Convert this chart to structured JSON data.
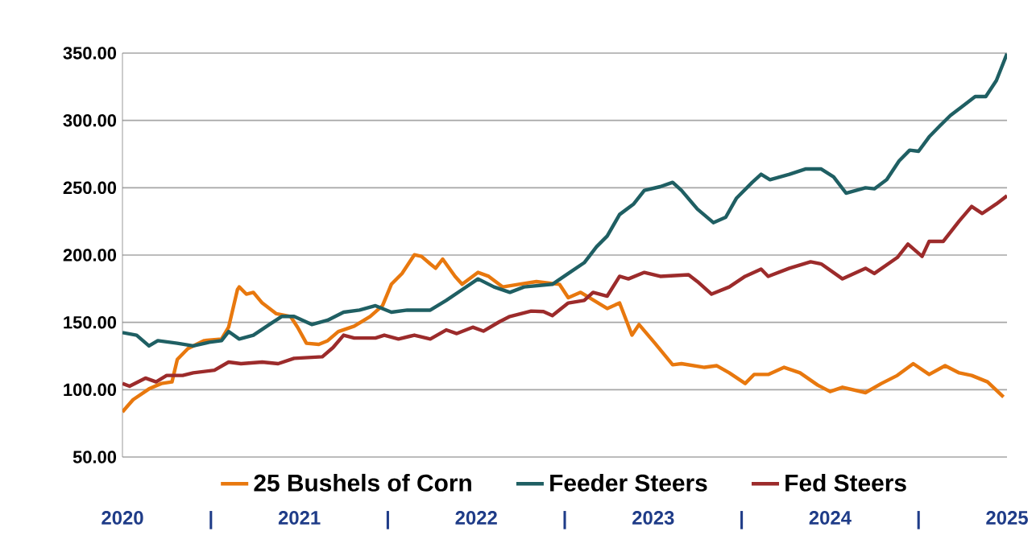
{
  "chart_data": {
    "type": "line",
    "xlim": [
      2020,
      2025
    ],
    "ylim": [
      50,
      350
    ],
    "xticks": [
      2020,
      {
        "value": 2020.5,
        "label": "|"
      },
      2021,
      {
        "value": 2021.5,
        "label": "|"
      },
      2022,
      {
        "value": 2022.5,
        "label": "|"
      },
      2023,
      {
        "value": 2023.5,
        "label": "|"
      },
      2024,
      {
        "value": 2024.5,
        "label": "|"
      },
      2025
    ],
    "yticks": [
      {
        "value": 50,
        "label": "50.00"
      },
      {
        "value": 100,
        "label": "100.00"
      },
      {
        "value": 150,
        "label": "150.00"
      },
      {
        "value": 200,
        "label": "200.00"
      },
      {
        "value": 250,
        "label": "250.00"
      },
      {
        "value": 300,
        "label": "300.00"
      },
      {
        "value": 350,
        "label": "350.00"
      }
    ],
    "grid": "y",
    "legend": "bottom",
    "series": [
      {
        "name": "25 Bushels of Corn",
        "color": "#e8780e",
        "x": [
          2020.0,
          2020.06,
          2020.15,
          2020.22,
          2020.28,
          2020.31,
          2020.37,
          2020.46,
          2020.56,
          2020.6,
          2020.65,
          2020.66,
          2020.7,
          2020.74,
          2020.79,
          2020.87,
          2020.95,
          2020.99,
          2021.04,
          2021.11,
          2021.16,
          2021.22,
          2021.31,
          2021.4,
          2021.47,
          2021.52,
          2021.58,
          2021.65,
          2021.69,
          2021.74,
          2021.77,
          2021.81,
          2021.88,
          2021.92,
          2022.01,
          2022.07,
          2022.15,
          2022.24,
          2022.34,
          2022.47,
          2022.52,
          2022.59,
          2022.74,
          2022.81,
          2022.88,
          2022.92,
          2023.01,
          2023.11,
          2023.16,
          2023.29,
          2023.36,
          2023.43,
          2023.52,
          2023.57,
          2023.65,
          2023.74,
          2023.83,
          2023.93,
          2024.0,
          2024.07,
          2024.2,
          2024.29,
          2024.38,
          2024.47,
          2024.56,
          2024.65,
          2024.73,
          2024.8,
          2024.89,
          2024.98
        ],
        "values": [
          83.5,
          92.6,
          100.6,
          104.6,
          105.8,
          122.5,
          130.5,
          136.4,
          137.6,
          146.4,
          174.3,
          176.3,
          171.0,
          172.3,
          164.4,
          156.4,
          154.4,
          146.4,
          134.5,
          133.7,
          136.4,
          143.2,
          147.2,
          154.4,
          162.4,
          178.3,
          186.3,
          200.2,
          199.0,
          193.4,
          190.2,
          197.0,
          184.2,
          178.3,
          187.1,
          184.2,
          176.3,
          178.3,
          180.3,
          178.3,
          168.3,
          172.3,
          160.3,
          164.4,
          140.5,
          148.4,
          134.5,
          118.5,
          119.3,
          116.6,
          117.8,
          112.5,
          104.6,
          111.3,
          111.3,
          116.6,
          112.5,
          103.4,
          98.6,
          101.8,
          97.8,
          104.6,
          110.6,
          119.3,
          111.3,
          117.8,
          112.5,
          110.6,
          105.8,
          94.6
        ]
      },
      {
        "name": "Feeder Steers",
        "color": "#1f5f63",
        "x": [
          2020.0,
          2020.08,
          2020.15,
          2020.2,
          2020.31,
          2020.4,
          2020.49,
          2020.56,
          2020.6,
          2020.66,
          2020.74,
          2020.83,
          2020.9,
          2020.97,
          2021.07,
          2021.16,
          2021.25,
          2021.34,
          2021.43,
          2021.52,
          2021.61,
          2021.74,
          2021.83,
          2021.92,
          2022.01,
          2022.1,
          2022.19,
          2022.27,
          2022.43,
          2022.52,
          2022.61,
          2022.68,
          2022.74,
          2022.81,
          2022.89,
          2022.95,
          2023.04,
          2023.11,
          2023.16,
          2023.25,
          2023.34,
          2023.41,
          2023.47,
          2023.56,
          2023.61,
          2023.66,
          2023.77,
          2023.86,
          2023.95,
          2024.02,
          2024.09,
          2024.2,
          2024.25,
          2024.32,
          2024.39,
          2024.45,
          2024.5,
          2024.56,
          2024.62,
          2024.68,
          2024.74,
          2024.82,
          2024.88,
          2024.94,
          2025.0
        ],
        "values": [
          142.4,
          140.5,
          132.5,
          136.4,
          134.5,
          132.5,
          135.2,
          136.4,
          143.2,
          137.6,
          140.5,
          148.4,
          154.4,
          154.4,
          148.4,
          151.6,
          157.6,
          159.1,
          162.4,
          157.6,
          159.1,
          159.1,
          166.3,
          174.3,
          182.3,
          176.3,
          172.3,
          176.3,
          178.3,
          186.3,
          194.3,
          206.2,
          214.1,
          230.1,
          238.0,
          248.0,
          250.8,
          254.0,
          248.0,
          234.1,
          224.1,
          228.1,
          242.1,
          254.0,
          260.0,
          256.0,
          260.0,
          263.9,
          263.9,
          258.0,
          246.0,
          250.0,
          249.2,
          256.0,
          269.9,
          277.9,
          277.1,
          287.8,
          295.9,
          303.7,
          309.7,
          317.7,
          317.7,
          329.7,
          349.6
        ]
      },
      {
        "name": "Fed Steers",
        "color": "#9c2b2b",
        "x": [
          2020.0,
          2020.04,
          2020.13,
          2020.19,
          2020.25,
          2020.34,
          2020.4,
          2020.52,
          2020.6,
          2020.67,
          2020.79,
          2020.88,
          2020.97,
          2021.13,
          2021.19,
          2021.25,
          2021.31,
          2021.43,
          2021.48,
          2021.56,
          2021.65,
          2021.74,
          2021.83,
          2021.89,
          2021.98,
          2022.04,
          2022.13,
          2022.19,
          2022.31,
          2022.38,
          2022.43,
          2022.52,
          2022.61,
          2022.66,
          2022.74,
          2022.81,
          2022.86,
          2022.95,
          2023.04,
          2023.2,
          2023.25,
          2023.33,
          2023.43,
          2023.52,
          2023.61,
          2023.65,
          2023.77,
          2023.89,
          2023.95,
          2024.07,
          2024.2,
          2024.25,
          2024.38,
          2024.44,
          2024.52,
          2024.56,
          2024.64,
          2024.73,
          2024.8,
          2024.86,
          2024.94,
          2025.0
        ],
        "values": [
          104.6,
          102.6,
          108.6,
          105.8,
          110.6,
          110.6,
          112.5,
          114.5,
          120.5,
          119.3,
          120.5,
          119.3,
          123.3,
          124.5,
          131.3,
          140.5,
          138.4,
          138.4,
          140.5,
          137.6,
          140.5,
          137.6,
          144.4,
          141.7,
          146.4,
          143.5,
          150.4,
          154.4,
          158.4,
          158.0,
          155.0,
          164.4,
          166.3,
          172.3,
          169.5,
          184.2,
          182.3,
          187.1,
          184.2,
          185.4,
          180.3,
          171.0,
          176.3,
          184.2,
          189.5,
          184.2,
          190.2,
          195.0,
          193.4,
          182.3,
          190.2,
          186.3,
          198.2,
          208.1,
          199.0,
          210.2,
          210.2,
          225.3,
          236.1,
          230.9,
          238.0,
          244.0
        ]
      }
    ]
  }
}
